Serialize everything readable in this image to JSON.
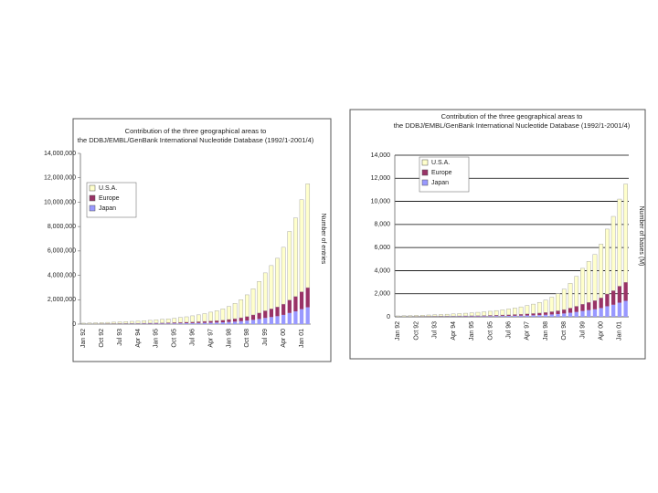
{
  "chart_data": [
    {
      "type": "stacked-bar",
      "title": "Contribution of the three geographical areas to the DDBJ/EMBL/GenBank International Nucleotide Database (1992/1-2001/4)",
      "y_label": "Number of entries",
      "categories": [
        "Jan 92",
        null,
        null,
        "Oct 92",
        null,
        null,
        "Jul 93",
        null,
        null,
        "Apr 94",
        null,
        null,
        "Jan 95",
        null,
        null,
        "Oct 95",
        null,
        null,
        "Jul 96",
        null,
        null,
        "Apr 97",
        null,
        null,
        "Jan 98",
        null,
        null,
        "Oct 98",
        null,
        null,
        "Jul 99",
        null,
        null,
        "Apr 00",
        null,
        null,
        "Jan 01",
        null
      ],
      "series": [
        {
          "name": "U.S.A.",
          "color": "#ffffcc",
          "values": [
            59000,
            71000,
            82000,
            92000,
            103000,
            119000,
            133000,
            148000,
            166000,
            185000,
            207000,
            230000,
            259000,
            288000,
            318000,
            355000,
            399000,
            444000,
            503000,
            563000,
            637000,
            725000,
            814000,
            925000,
            1073000,
            1258000,
            1480000,
            1776000,
            2146000,
            2590000,
            3108000,
            3552000,
            3996000,
            4662000,
            5624000,
            6438000,
            7548000,
            8510000
          ]
        },
        {
          "name": "Europe",
          "color": "#993366",
          "values": [
            11000,
            13000,
            15000,
            18000,
            20000,
            22000,
            25000,
            28000,
            32000,
            35000,
            39000,
            43000,
            49000,
            55000,
            60000,
            67000,
            76000,
            84000,
            95000,
            106000,
            120000,
            137000,
            154000,
            175000,
            203000,
            238000,
            280000,
            336000,
            406000,
            490000,
            588000,
            672000,
            756000,
            882000,
            1064000,
            1218000,
            1428000,
            1610000
          ]
        },
        {
          "name": "Japan",
          "color": "#9999ff",
          "values": [
            10000,
            11000,
            13000,
            15000,
            17000,
            19000,
            22000,
            24000,
            27000,
            30000,
            34000,
            37000,
            42000,
            47000,
            52000,
            58000,
            65000,
            72000,
            82000,
            91000,
            103000,
            118000,
            132000,
            150000,
            174000,
            204000,
            240000,
            288000,
            348000,
            420000,
            504000,
            576000,
            648000,
            756000,
            912000,
            1044000,
            1224000,
            1380000
          ]
        }
      ],
      "ylim": [
        0,
        14000000
      ],
      "yticks": [
        0,
        {
          "value": 2000000,
          "label": "2,000,000"
        },
        {
          "value": 4000000,
          "label": "4,000,000"
        },
        {
          "value": 6000000,
          "label": "6,000,000"
        },
        {
          "value": 8000000,
          "label": "8,000,000"
        },
        {
          "value": 10000000,
          "label": "10,000,000"
        },
        {
          "value": 12000000,
          "label": "12,000,000"
        },
        {
          "value": 14000000,
          "label": "14,000,000"
        }
      ],
      "grid": false
    },
    {
      "type": "stacked-bar",
      "title": "Contribution of the three geographical areas to the DDBJ/EMBL/GenBank International Nucleotide Database (1992/1-2001/4)",
      "y_label": "Number of bases (M)",
      "categories": [
        "Jan 92",
        null,
        null,
        "Oct 92",
        null,
        null,
        "Jul 93",
        null,
        null,
        "Apr 94",
        null,
        null,
        "Jan 95",
        null,
        null,
        "Oct 95",
        null,
        null,
        "Jul 96",
        null,
        null,
        "Apr 97",
        null,
        null,
        "Jan 98",
        null,
        null,
        "Oct 98",
        null,
        null,
        "Jul 99",
        null,
        null,
        "Apr 00",
        null,
        null,
        "Jan 01",
        null
      ],
      "series": [
        {
          "name": "U.S.A.",
          "color": "#ffffcc",
          "values": [
            59,
            71,
            82,
            92,
            103,
            119,
            133,
            148,
            166,
            185,
            207,
            230,
            259,
            288,
            318,
            355,
            399,
            444,
            503,
            563,
            637,
            725,
            814,
            925,
            1073,
            1258,
            1480,
            1776,
            2146,
            2590,
            3108,
            3552,
            3996,
            4662,
            5624,
            6438,
            7548,
            8510
          ]
        },
        {
          "name": "Europe",
          "color": "#993366",
          "values": [
            11,
            13,
            15,
            18,
            20,
            22,
            25,
            28,
            32,
            35,
            39,
            43,
            49,
            55,
            60,
            67,
            76,
            84,
            95,
            106,
            120,
            137,
            154,
            175,
            203,
            238,
            280,
            336,
            406,
            490,
            588,
            672,
            756,
            882,
            1064,
            1218,
            1428,
            1610
          ]
        },
        {
          "name": "Japan",
          "color": "#9999ff",
          "values": [
            10,
            11,
            13,
            15,
            17,
            19,
            22,
            24,
            27,
            30,
            34,
            37,
            42,
            47,
            52,
            58,
            65,
            72,
            82,
            91,
            103,
            118,
            132,
            150,
            174,
            204,
            240,
            288,
            348,
            420,
            504,
            576,
            648,
            756,
            912,
            1044,
            1224,
            1380
          ]
        }
      ],
      "ylim": [
        0,
        14000
      ],
      "yticks": [
        0,
        {
          "value": 2000,
          "label": "2,000"
        },
        {
          "value": 4000,
          "label": "4,000"
        },
        {
          "value": 6000,
          "label": "6,000"
        },
        {
          "value": 8000,
          "label": "8,000"
        },
        {
          "value": 10000,
          "label": "10,000"
        },
        {
          "value": 12000,
          "label": "12,000"
        },
        {
          "value": 14000,
          "label": "14,000"
        }
      ],
      "grid": true
    }
  ]
}
